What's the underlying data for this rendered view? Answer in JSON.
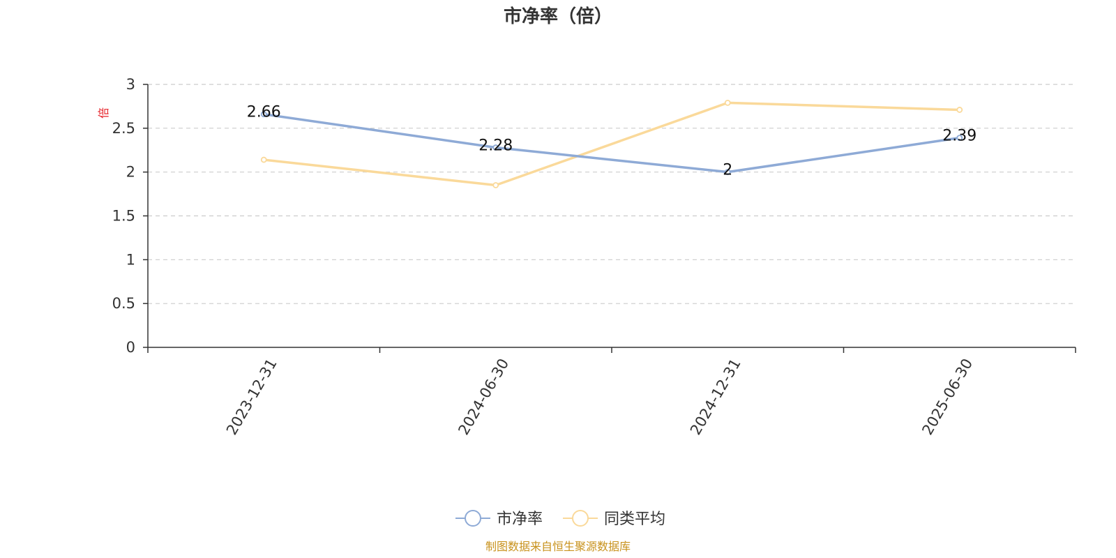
{
  "chart_data": {
    "type": "line",
    "title": "市净率（倍）",
    "ylabel": "倍",
    "xlabel": "",
    "categories": [
      "2023-12-31",
      "2024-06-30",
      "2024-12-31",
      "2025-06-30"
    ],
    "ylim": [
      0,
      3
    ],
    "yticks": [
      "0",
      "0.5",
      "1",
      "1.5",
      "2",
      "2.5",
      "3"
    ],
    "grid": true,
    "legend_position": "bottom-center",
    "series": [
      {
        "name": "市净率",
        "color": "#8eaad6",
        "values": [
          2.66,
          2.28,
          2.0,
          2.39
        ],
        "labels": [
          "2.66",
          "2.28",
          "2",
          "2.39"
        ]
      },
      {
        "name": "同类平均",
        "color": "#fad99a",
        "values": [
          2.14,
          1.85,
          2.79,
          2.71
        ]
      }
    ],
    "source": "制图数据来自恒生聚源数据库"
  }
}
